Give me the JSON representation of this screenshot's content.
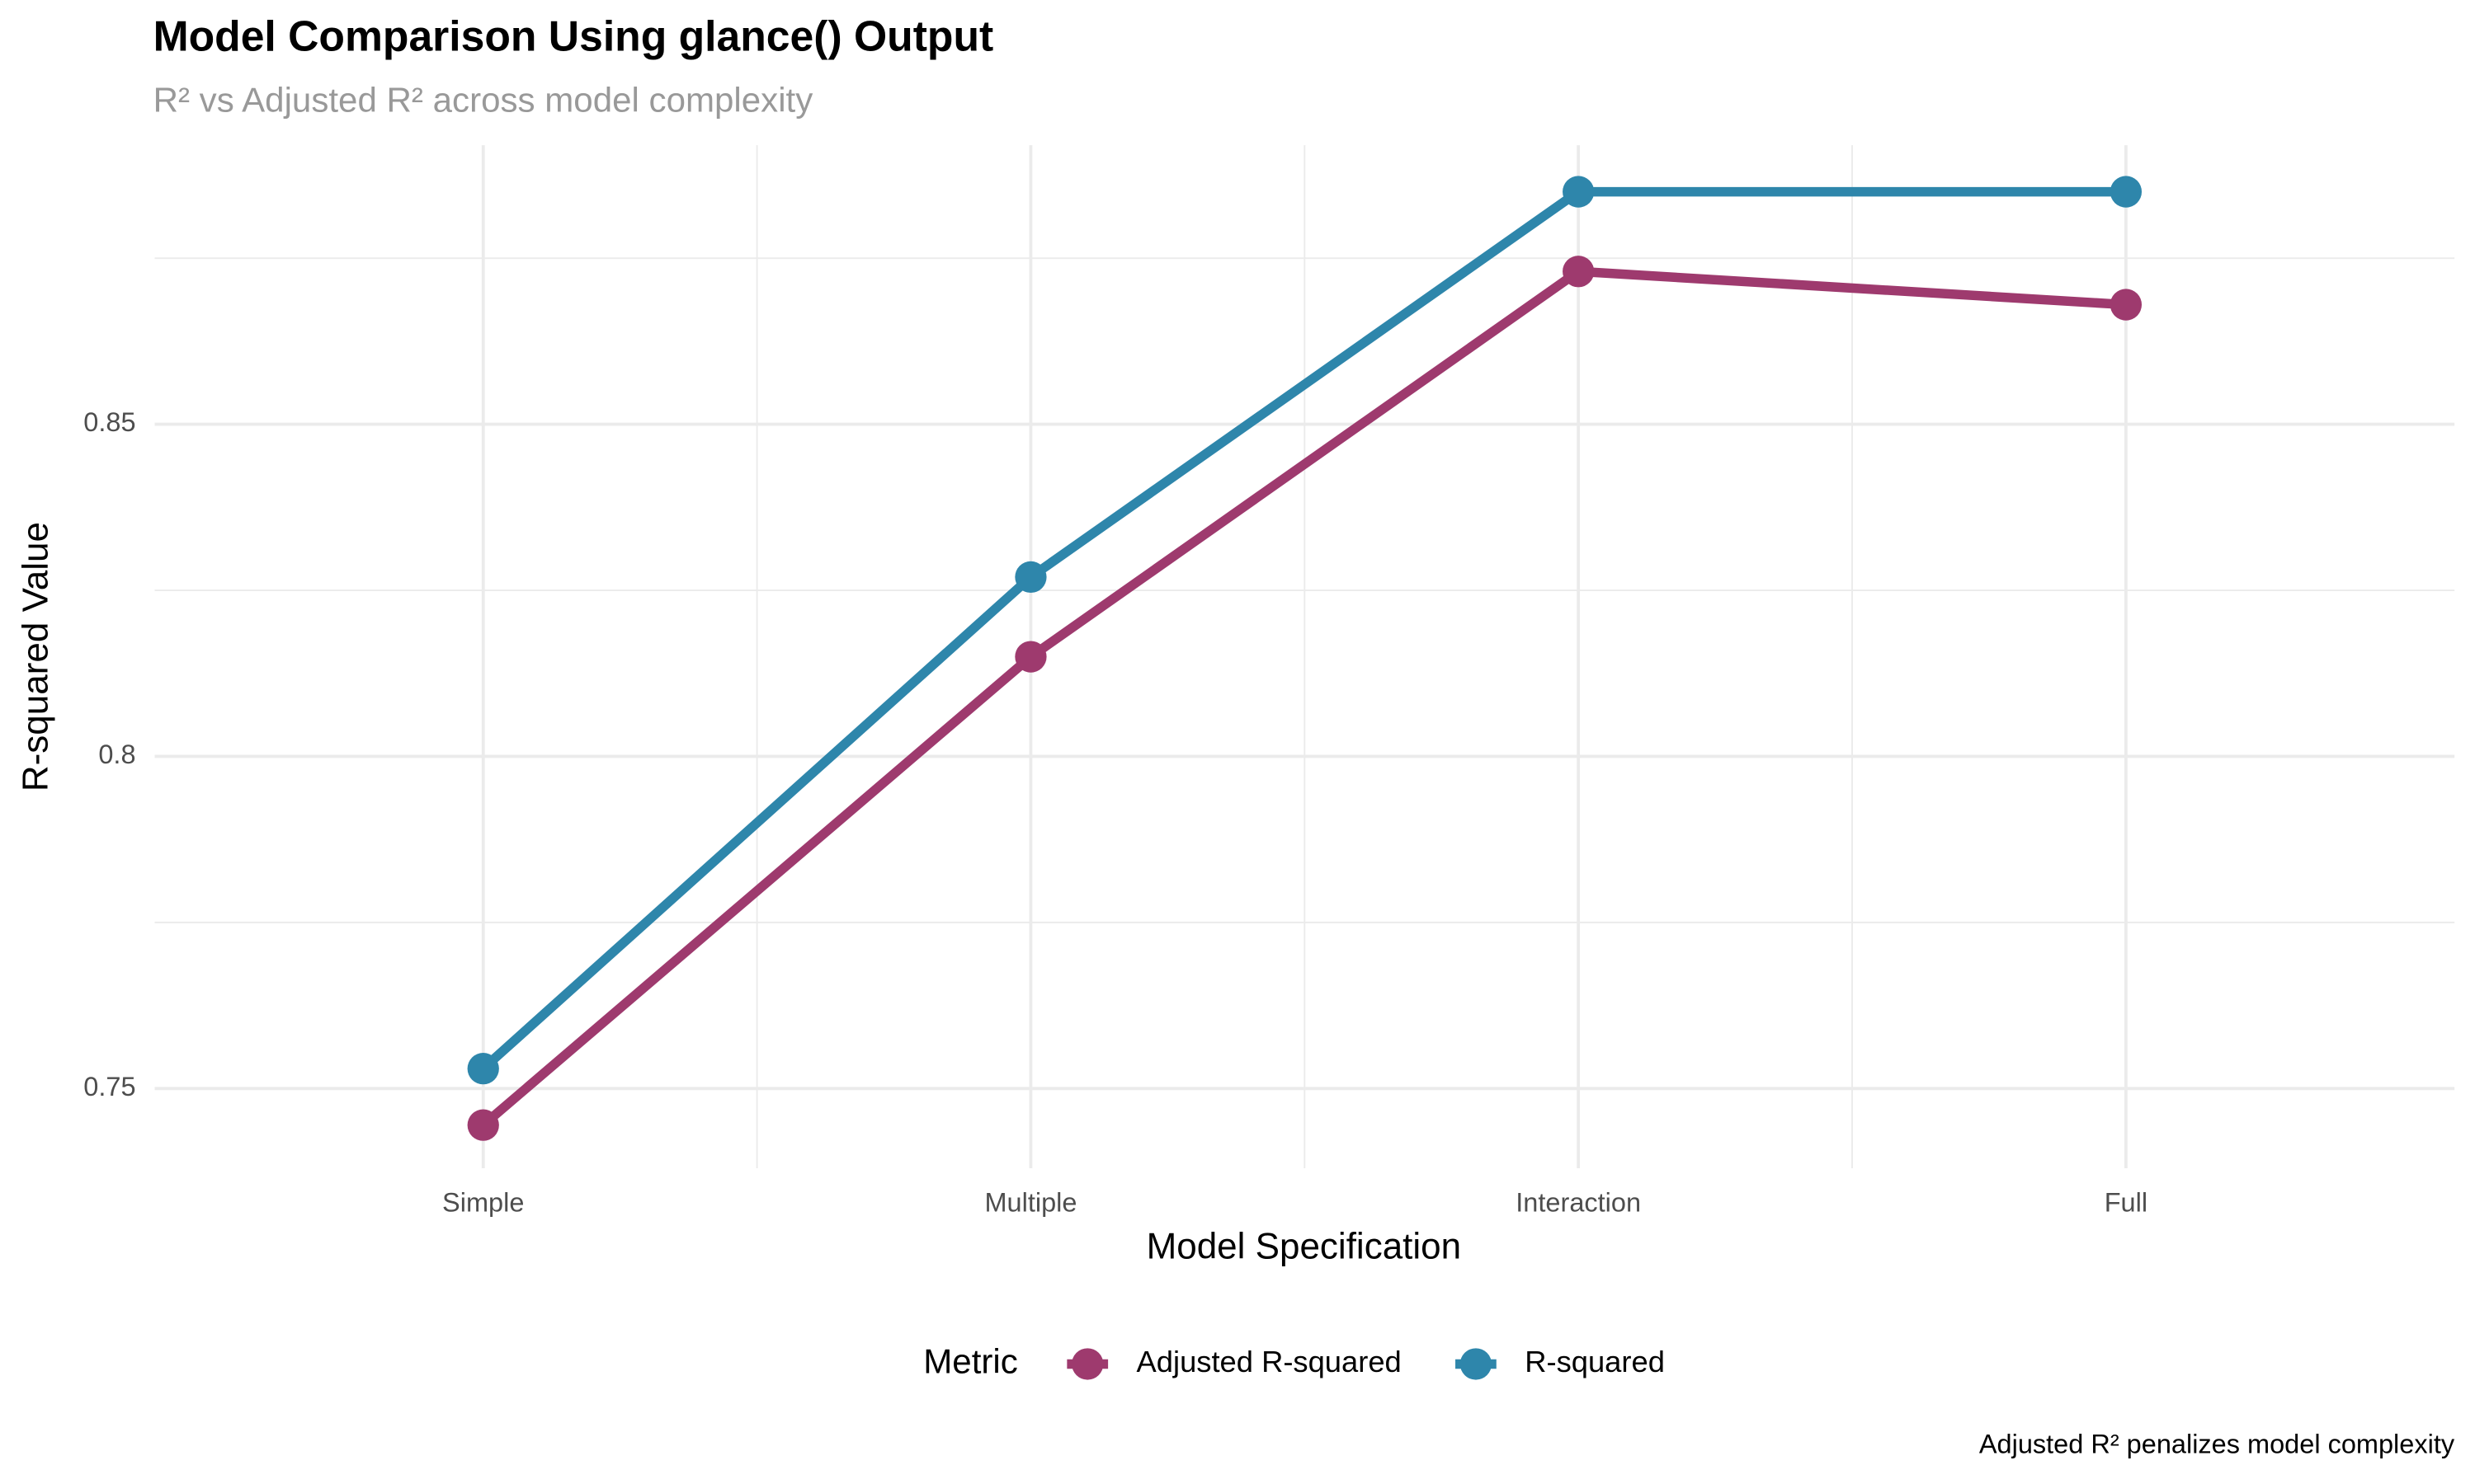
{
  "chart_data": {
    "type": "line",
    "title": "Model Comparison Using glance() Output",
    "subtitle": "R² vs Adjusted R² across model complexity",
    "x_label": "Model Specification",
    "y_label": "R-squared Value",
    "caption": "Adjusted R² penalizes model complexity",
    "legend_title": "Metric",
    "legend_position": "bottom",
    "categories": [
      "Simple",
      "Multiple",
      "Interaction",
      "Full"
    ],
    "series": [
      {
        "name": "Adjusted R-squared",
        "color": "#9E3A6E",
        "values": [
          0.7445,
          0.815,
          0.873,
          0.868
        ]
      },
      {
        "name": "R-squared",
        "color": "#2E86AB",
        "values": [
          0.753,
          0.827,
          0.885,
          0.885
        ]
      }
    ],
    "ylim": [
      0.738,
      0.892
    ],
    "yticks": [
      0.75,
      0.8,
      0.85
    ],
    "y_minor_grid": [
      0.775,
      0.825,
      0.875
    ],
    "grid": true
  }
}
